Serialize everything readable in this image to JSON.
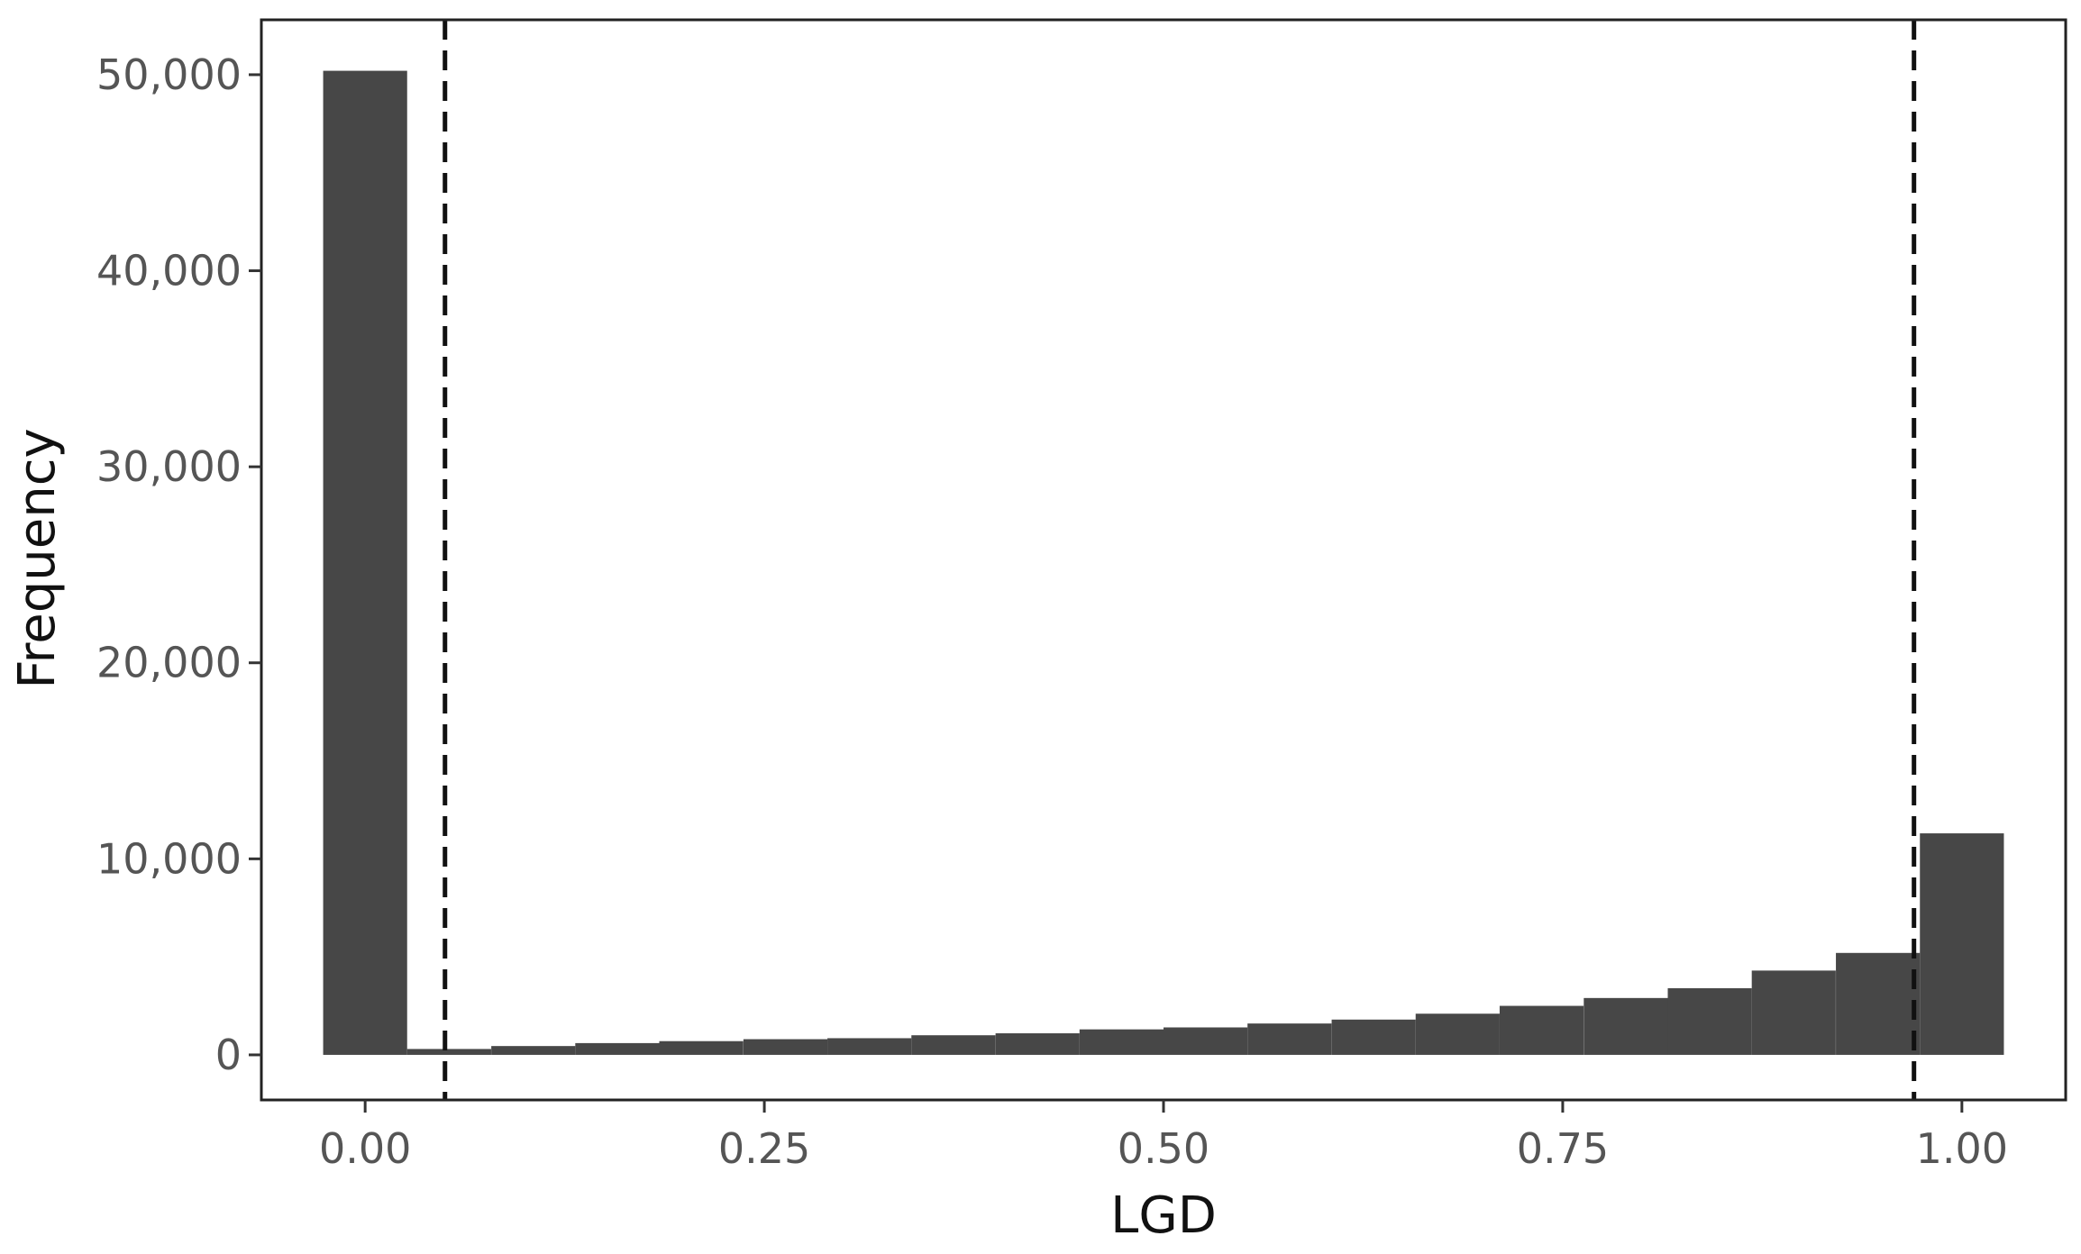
{
  "chart_data": {
    "type": "bar",
    "xlabel": "LGD",
    "ylabel": "Frequency",
    "xlim": [
      -0.065,
      1.065
    ],
    "ylim": [
      -2300,
      52800
    ],
    "grid": false,
    "bin_width": 0.0526,
    "x_ticks": [
      {
        "value": 0.0,
        "label": "0.00"
      },
      {
        "value": 0.25,
        "label": "0.25"
      },
      {
        "value": 0.5,
        "label": "0.50"
      },
      {
        "value": 0.75,
        "label": "0.75"
      },
      {
        "value": 1.0,
        "label": "1.00"
      }
    ],
    "y_ticks": [
      {
        "value": 0,
        "label": "0"
      },
      {
        "value": 10000,
        "label": "10,000"
      },
      {
        "value": 20000,
        "label": "20,000"
      },
      {
        "value": 30000,
        "label": "30,000"
      },
      {
        "value": 40000,
        "label": "40,000"
      },
      {
        "value": 50000,
        "label": "50,000"
      }
    ],
    "bins": [
      {
        "x": 0.0,
        "count": 50200
      },
      {
        "x": 0.0526,
        "count": 300
      },
      {
        "x": 0.1053,
        "count": 450
      },
      {
        "x": 0.1579,
        "count": 600
      },
      {
        "x": 0.2105,
        "count": 700
      },
      {
        "x": 0.2632,
        "count": 800
      },
      {
        "x": 0.3158,
        "count": 850
      },
      {
        "x": 0.3684,
        "count": 1000
      },
      {
        "x": 0.4211,
        "count": 1100
      },
      {
        "x": 0.4737,
        "count": 1300
      },
      {
        "x": 0.5263,
        "count": 1400
      },
      {
        "x": 0.5789,
        "count": 1600
      },
      {
        "x": 0.6316,
        "count": 1800
      },
      {
        "x": 0.6842,
        "count": 2100
      },
      {
        "x": 0.7368,
        "count": 2500
      },
      {
        "x": 0.7895,
        "count": 2900
      },
      {
        "x": 0.8421,
        "count": 3400
      },
      {
        "x": 0.8947,
        "count": 4300
      },
      {
        "x": 0.9474,
        "count": 5200
      },
      {
        "x": 1.0,
        "count": 11300
      }
    ],
    "reference_lines": [
      {
        "x": 0.05,
        "style": "dashed"
      },
      {
        "x": 0.97,
        "style": "dashed"
      }
    ],
    "colors": {
      "bar": "#474747",
      "reference_line": "#111111",
      "frame": "#222222"
    }
  }
}
